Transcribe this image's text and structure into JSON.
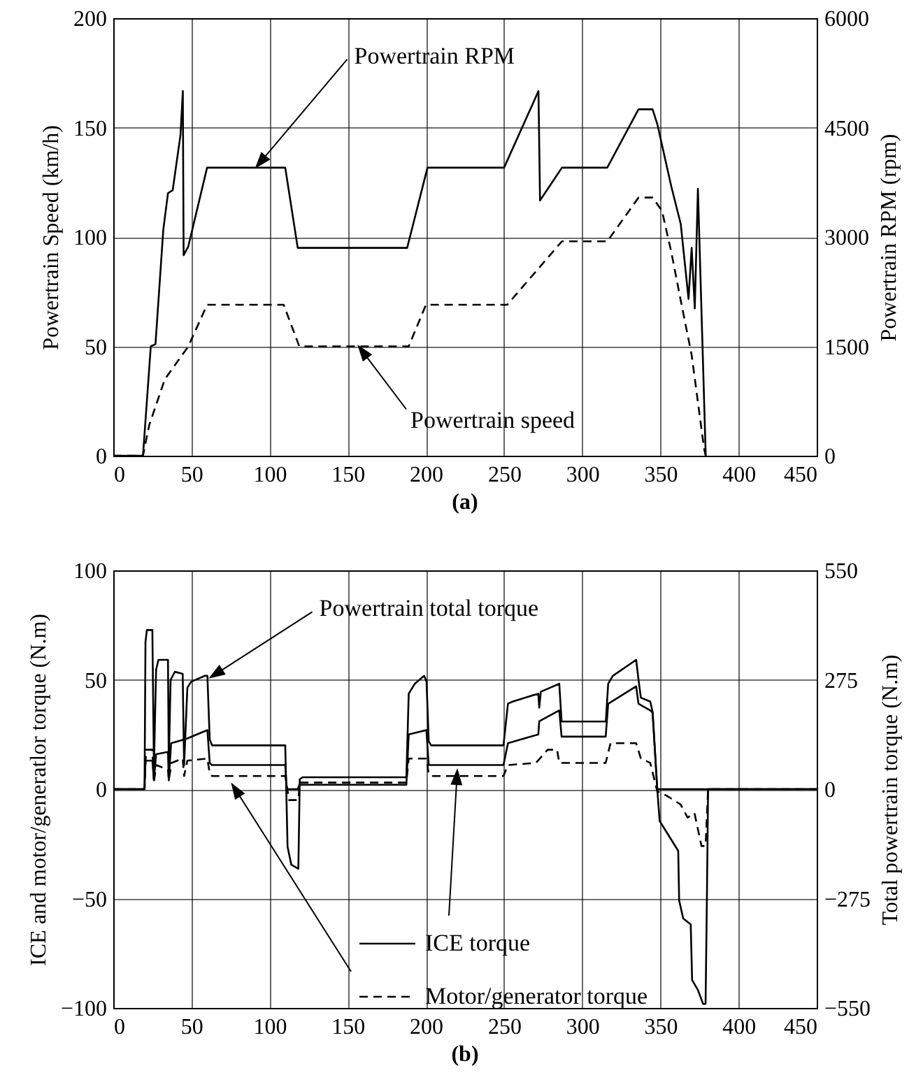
{
  "chart_data": [
    {
      "type": "line",
      "title": "(a)",
      "ylabel": "Powertrain Speed (km/h)",
      "y2label": "Powertrain RPM (rpm)",
      "xlim": [
        0,
        450
      ],
      "xticks": [
        0,
        50,
        100,
        150,
        200,
        250,
        300,
        350,
        400,
        450
      ],
      "ylim": [
        0,
        200
      ],
      "yticks": [
        0,
        50,
        100,
        150,
        200
      ],
      "y2lim": [
        0,
        6000
      ],
      "y2ticks": [
        0,
        1500,
        3000,
        4500,
        6000
      ],
      "grid": true,
      "annotations": [
        {
          "text": "Powertrain RPM",
          "x": 91.5,
          "y": 132
        },
        {
          "text": "Powertrain speed",
          "x": 157,
          "y": 50
        }
      ],
      "series": [
        {
          "color": "#000000",
          "line_style": "dashed",
          "x": [
            0,
            19,
            23,
            33,
            42,
            48,
            60,
            109,
            119,
            189,
            200,
            252,
            287,
            316,
            336,
            345,
            351,
            357,
            363,
            370,
            378,
            379
          ],
          "values": [
            0,
            0,
            14,
            35,
            44,
            50,
            69,
            69,
            50,
            50,
            69,
            69,
            98,
            98,
            118,
            118,
            112,
            93,
            71,
            46,
            3,
            0
          ]
        },
        {
          "color": "#000000",
          "axis": "y2",
          "x": [
            0,
            19,
            24,
            27,
            32,
            35,
            38,
            43,
            44.5,
            45,
            48,
            60,
            110,
            118,
            188,
            201,
            250,
            272,
            273,
            287,
            316,
            336,
            345,
            348,
            357,
            363,
            368,
            370,
            372,
            374,
            375,
            379
          ],
          "values": [
            0,
            0,
            1500,
            1530,
            3100,
            3600,
            3640,
            4400,
            5000,
            2750,
            2870,
            3950,
            3950,
            2850,
            2850,
            3950,
            3950,
            5000,
            3500,
            3950,
            3950,
            4750,
            4750,
            4550,
            3690,
            3180,
            2150,
            2850,
            2020,
            3660,
            2920,
            0
          ]
        }
      ]
    },
    {
      "type": "line",
      "title": "(b)",
      "ylabel": "ICE and motor/generatlor torque (N.m)",
      "y2label": "Total powertrain torque (N.m)",
      "xlim": [
        0,
        450
      ],
      "xticks": [
        0,
        50,
        100,
        150,
        200,
        250,
        300,
        350,
        400,
        450
      ],
      "ylim": [
        -100,
        100
      ],
      "yticks": [
        -100,
        -50,
        0,
        50,
        100
      ],
      "y2lim": [
        -550,
        550
      ],
      "y2ticks": [
        -550,
        -275,
        0,
        275,
        550
      ],
      "grid": true,
      "legend": "bottom",
      "annotations": [
        {
          "text": "Powertrain total torque",
          "x": 62,
          "y": 51
        }
      ],
      "series": [
        {
          "name": "ICE torque",
          "color": "#000000",
          "x": [
            0,
            20,
            20.6,
            25,
            26,
            27.4,
            35,
            35.5,
            37,
            46.8,
            60.2,
            61.7,
            63,
            110,
            111,
            118,
            119,
            187.5,
            189,
            200.3,
            201.8,
            249.6,
            252.5,
            271.9,
            272.5,
            285.3,
            286.8,
            315,
            316.6,
            334.5,
            336,
            343.5,
            345,
            348,
            450
          ],
          "values": [
            0,
            0,
            13,
            13,
            4,
            16,
            17,
            4,
            21,
            23,
            27,
            12,
            11,
            11,
            0,
            0,
            2,
            2,
            25,
            27,
            11,
            11,
            21,
            25,
            31,
            36,
            24,
            24,
            39,
            47,
            39,
            36,
            35,
            0,
            0
          ]
        },
        {
          "name": "Motor/generator torque",
          "color": "#000000",
          "line_style": "dashed",
          "x": [
            0,
            20,
            21,
            25,
            26,
            27.4,
            35,
            35.5,
            37.3,
            44.4,
            45.3,
            47.4,
            60.2,
            61.7,
            63.2,
            110,
            112.4,
            118.4,
            119.3,
            187.5,
            189,
            200.3,
            201.8,
            203.3,
            249.6,
            252.5,
            270.4,
            277.9,
            283.9,
            285.3,
            315,
            318.1,
            334.5,
            337.5,
            343.5,
            348,
            354,
            362.9,
            367.4,
            371.8,
            376.3,
            378.9,
            380.5,
            450
          ],
          "values": [
            0,
            0,
            18,
            18,
            3,
            11,
            9,
            4,
            12,
            14,
            6,
            13,
            14,
            7,
            6,
            6,
            -5,
            -5,
            3,
            3,
            14,
            14,
            7,
            6,
            6,
            11,
            12,
            18,
            18,
            12,
            12,
            21,
            21,
            14,
            12,
            -1,
            -3,
            -7,
            -13,
            -11,
            -26,
            -26,
            0,
            0
          ]
        },
        {
          "color": "#000000",
          "axis": "y2",
          "x": [
            0,
            20,
            20.6,
            21.5,
            25,
            26,
            27.4,
            28.9,
            35,
            35.5,
            36.7,
            39.4,
            44.4,
            45.3,
            47.4,
            49.8,
            58.7,
            60.2,
            61.7,
            63.2,
            110,
            111.5,
            113.9,
            118.4,
            119.3,
            121.3,
            187.5,
            189,
            192.9,
            198.9,
            200.4,
            201.8,
            203.3,
            249.6,
            252.5,
            255.5,
            271.9,
            272.5,
            273.5,
            285.3,
            286.8,
            288.3,
            315.1,
            316.6,
            319.6,
            334.5,
            336,
            337.5,
            343.5,
            345,
            348,
            349.5,
            361.4,
            362,
            364.6,
            369.4,
            370.3,
            374,
            377.3,
            378.9,
            379.8,
            380.5,
            450
          ],
          "values": [
            0,
            0,
            370,
            400,
            400,
            55,
            300,
            325,
            325,
            65,
            275,
            295,
            290,
            60,
            255,
            270,
            285,
            285,
            125,
            110,
            110,
            -145,
            -190,
            -200,
            25,
            30,
            30,
            240,
            265,
            285,
            270,
            120,
            110,
            110,
            215,
            220,
            240,
            205,
            245,
            265,
            170,
            170,
            170,
            265,
            285,
            325,
            275,
            230,
            220,
            195,
            0,
            -80,
            -155,
            -280,
            -325,
            -340,
            -480,
            -505,
            -540,
            -540,
            -260,
            0,
            0
          ]
        }
      ]
    }
  ]
}
